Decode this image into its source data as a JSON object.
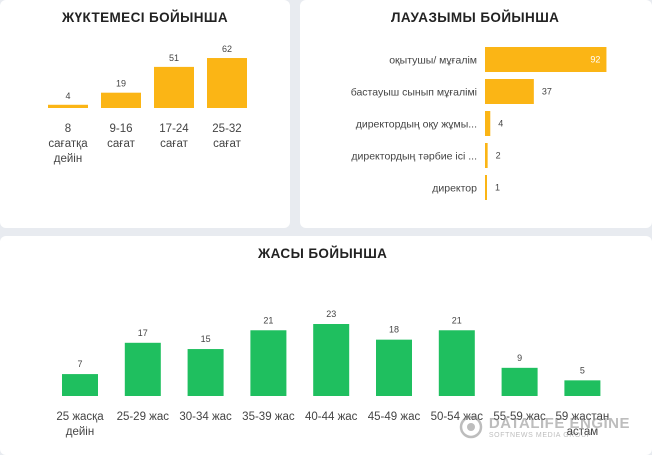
{
  "chart_data": [
    {
      "type": "bar",
      "title": "ЖҮКТЕМЕСІ БОЙЫНША",
      "categories": [
        "8 сағатқа дейін",
        "9-16 сағат",
        "17-24 сағат",
        "25-32 сағат"
      ],
      "category_lines": [
        [
          "8",
          "сағатқа",
          "дейін"
        ],
        [
          "9-16",
          "сағат"
        ],
        [
          "17-24",
          "сағат"
        ],
        [
          "25-32",
          "сағат"
        ]
      ],
      "values": [
        4,
        19,
        51,
        62
      ],
      "color": "#fbb515",
      "grid": false,
      "legend": "none"
    },
    {
      "type": "bar",
      "orientation": "horizontal",
      "title": "ЛАУАЗЫМЫ БОЙЫНША",
      "categories": [
        "оқытушы/ мұғалім",
        "бастауыш сынып мұғалімі",
        "директордың оқу жұмы...",
        "директордың тәрбие ісі ...",
        "директор"
      ],
      "values": [
        92,
        37,
        4,
        2,
        1
      ],
      "color": "#fbb515",
      "grid": false,
      "legend": "none"
    },
    {
      "type": "bar",
      "title": "ЖАСЫ БОЙЫНША",
      "categories": [
        "25 жасқа дейін",
        "25-29 жас",
        "30-34 жас",
        "35-39 жас",
        "40-44 жас",
        "45-49 жас",
        "50-54 жас",
        "55-59 жас",
        "59 жастан астам"
      ],
      "category_lines": [
        [
          "25 жасқа",
          "дейін"
        ],
        [
          "25-29 жас"
        ],
        [
          "30-34 жас"
        ],
        [
          "35-39 жас"
        ],
        [
          "40-44 жас"
        ],
        [
          "45-49 жас"
        ],
        [
          "50-54 жас"
        ],
        [
          "55-59 жас"
        ],
        [
          "59 жастан",
          "астам"
        ]
      ],
      "values": [
        7,
        17,
        15,
        21,
        23,
        18,
        21,
        9,
        5
      ],
      "color": "#1fbf5f",
      "grid": false,
      "legend": "none"
    }
  ],
  "watermark": {
    "title": "DATALIFE ENGINE",
    "subtitle": "SOFTNEWS MEDIA GROUP",
    "icon": "datalife-engine-logo-icon"
  }
}
